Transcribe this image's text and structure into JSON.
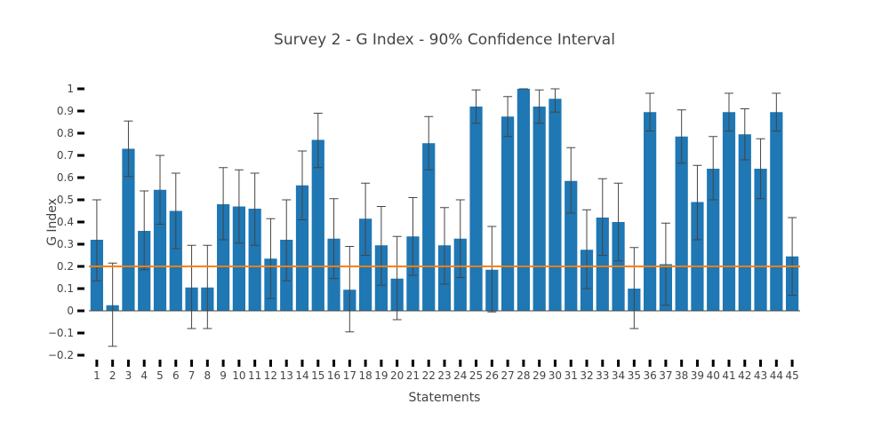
{
  "chart_data": {
    "type": "bar",
    "title": "Survey 2 - G Index - 90% Confidence Interval",
    "xlabel": "Statements",
    "ylabel": "G Index",
    "ylim": [
      -0.2,
      1
    ],
    "yticks": [
      "−0.2",
      "−0.1",
      "0",
      "0.1",
      "0.2",
      "0.3",
      "0.4",
      "0.5",
      "0.6",
      "0.7",
      "0.8",
      "0.9",
      "1"
    ],
    "ytick_values": [
      -0.2,
      -0.1,
      0,
      0.1,
      0.2,
      0.3,
      0.4,
      0.5,
      0.6,
      0.7,
      0.8,
      0.9,
      1
    ],
    "categories": [
      "1",
      "2",
      "3",
      "4",
      "5",
      "6",
      "7",
      "8",
      "9",
      "10",
      "11",
      "12",
      "13",
      "14",
      "15",
      "16",
      "17",
      "18",
      "19",
      "20",
      "21",
      "22",
      "23",
      "24",
      "25",
      "26",
      "27",
      "28",
      "29",
      "30",
      "31",
      "32",
      "33",
      "34",
      "35",
      "36",
      "37",
      "38",
      "39",
      "40",
      "41",
      "42",
      "43",
      "44",
      "45"
    ],
    "values": [
      0.32,
      0.025,
      0.73,
      0.36,
      0.545,
      0.45,
      0.105,
      0.105,
      0.48,
      0.47,
      0.46,
      0.235,
      0.32,
      0.565,
      0.77,
      0.325,
      0.095,
      0.415,
      0.295,
      0.145,
      0.335,
      0.755,
      0.295,
      0.325,
      0.92,
      0.185,
      0.875,
      1.0,
      0.92,
      0.955,
      0.585,
      0.275,
      0.42,
      0.4,
      0.1,
      0.895,
      0.21,
      0.785,
      0.49,
      0.64,
      0.895,
      0.795,
      0.64,
      0.895,
      0.245
    ],
    "error_low": [
      0.135,
      -0.16,
      0.605,
      0.185,
      0.39,
      0.28,
      -0.08,
      -0.08,
      0.32,
      0.305,
      0.295,
      0.055,
      0.135,
      0.41,
      0.645,
      0.145,
      -0.095,
      0.25,
      0.115,
      -0.04,
      0.16,
      0.635,
      0.12,
      0.15,
      0.845,
      -0.005,
      0.785,
      1.0,
      0.845,
      0.895,
      0.44,
      0.1,
      0.25,
      0.225,
      -0.08,
      0.81,
      0.025,
      0.665,
      0.32,
      0.5,
      0.81,
      0.68,
      0.505,
      0.81,
      0.07
    ],
    "error_high": [
      0.5,
      0.215,
      0.855,
      0.54,
      0.7,
      0.62,
      0.295,
      0.295,
      0.645,
      0.635,
      0.62,
      0.415,
      0.5,
      0.72,
      0.89,
      0.505,
      0.29,
      0.575,
      0.47,
      0.335,
      0.51,
      0.875,
      0.465,
      0.5,
      0.995,
      0.38,
      0.965,
      1.0,
      0.995,
      1.0,
      0.735,
      0.455,
      0.595,
      0.575,
      0.285,
      0.98,
      0.395,
      0.905,
      0.655,
      0.785,
      0.98,
      0.91,
      0.775,
      0.98,
      0.42
    ],
    "reference_line": 0.2,
    "colors": {
      "bar": "#1f77b4",
      "error_bar": "#444444",
      "reference_line": "#ff7f0e",
      "zero_line": "#444444",
      "tick_mark": "#000000"
    },
    "grid": false,
    "legend": "none"
  }
}
